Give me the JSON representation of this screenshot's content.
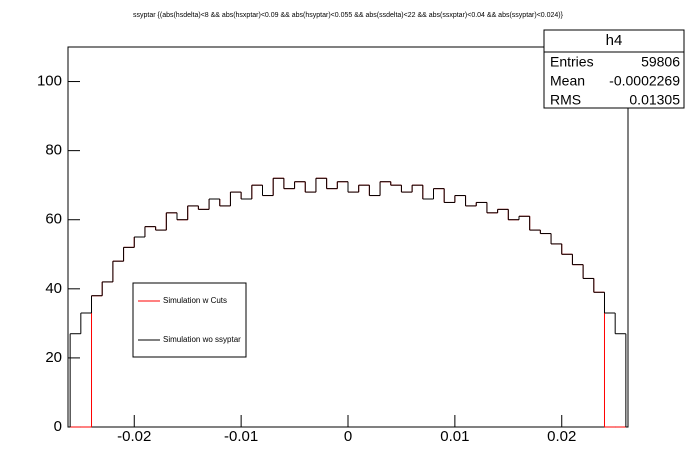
{
  "chart_data": {
    "type": "histogram",
    "title": "ssyptar {(abs(hsdelta)<8 && abs(hsxptar)<0.09 && abs(hsyptar)<0.055 && abs(ssdelta)<22 && abs(ssxptar)<0.04 && abs(ssyptar)<0.024)}",
    "bins": [
      -0.026,
      -0.025,
      -0.024,
      -0.023,
      -0.022,
      -0.021,
      -0.02,
      -0.019,
      -0.018,
      -0.017,
      -0.016,
      -0.015,
      -0.014,
      -0.013,
      -0.012,
      -0.011,
      -0.01,
      -0.009,
      -0.008,
      -0.007,
      -0.006,
      -0.005,
      -0.004,
      -0.003,
      -0.002,
      -0.001,
      0,
      0.001,
      0.002,
      0.003,
      0.004,
      0.005,
      0.006,
      0.007,
      0.008,
      0.009,
      0.01,
      0.011,
      0.012,
      0.013,
      0.014,
      0.015,
      0.016,
      0.017,
      0.018,
      0.019,
      0.02,
      0.021,
      0.022,
      0.023,
      0.024,
      0.025,
      0.026
    ],
    "series": [
      {
        "name": "Simulation w Cuts",
        "color": "#ff0000",
        "values": [
          0,
          0,
          38,
          42,
          48,
          52,
          55,
          58,
          57,
          62,
          60,
          64,
          63,
          66,
          64,
          68,
          66,
          70,
          67,
          72,
          69,
          71,
          68,
          72,
          69,
          71,
          68,
          70,
          67,
          71,
          70,
          68,
          70,
          66,
          69,
          65,
          67,
          64,
          65,
          62,
          63,
          60,
          61,
          57,
          56,
          53,
          50,
          47,
          43,
          39,
          0,
          0
        ]
      },
      {
        "name": "Simulation wo ssyptar",
        "color": "#000000",
        "values": [
          27,
          33,
          38,
          42,
          48,
          52,
          55,
          58,
          57,
          62,
          60,
          64,
          63,
          66,
          64,
          68,
          66,
          70,
          67,
          72,
          69,
          71,
          68,
          72,
          69,
          71,
          68,
          70,
          67,
          71,
          70,
          68,
          70,
          66,
          69,
          65,
          67,
          64,
          65,
          62,
          63,
          60,
          61,
          57,
          56,
          53,
          50,
          47,
          43,
          39,
          33,
          27
        ]
      }
    ],
    "xlim": [
      -0.0262,
      0.0262
    ],
    "xticks": [
      -0.02,
      -0.01,
      0,
      0.01,
      0.02
    ],
    "ylim": [
      0,
      110
    ],
    "yticks": [
      0,
      20,
      40,
      60,
      80,
      100
    ],
    "stats": {
      "title": "h4",
      "rows": [
        [
          "Entries",
          59806
        ],
        [
          "Mean",
          -0.0002269
        ],
        [
          "RMS",
          0.01305
        ]
      ]
    }
  }
}
